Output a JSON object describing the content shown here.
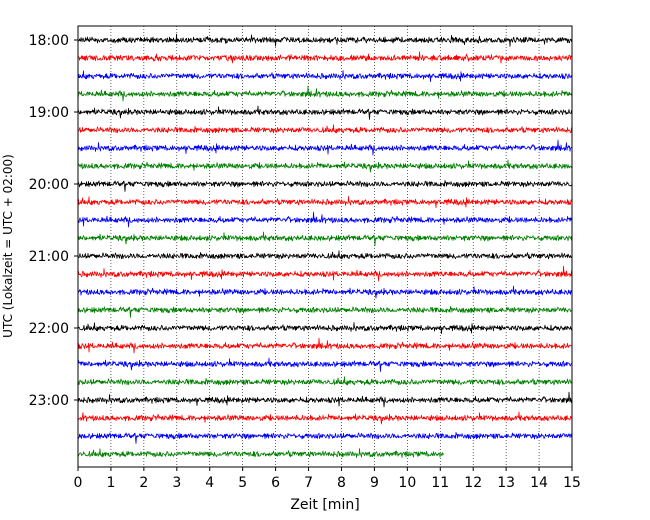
{
  "chart_data": {
    "type": "line",
    "title": "",
    "xlabel": "Zeit  [min]",
    "ylabel": "UTC (Lokalzeit = UTC + 02:00)",
    "xlim": [
      0,
      15
    ],
    "x_ticks": [
      0,
      1,
      2,
      3,
      4,
      5,
      6,
      7,
      8,
      9,
      10,
      11,
      12,
      13,
      14,
      15
    ],
    "y_tick_labels": [
      "18:00",
      "19:00",
      "20:00",
      "21:00",
      "22:00",
      "23:00"
    ],
    "grid": "vertical dotted lines at each minute",
    "legend": "none",
    "trace_colors": [
      "#000000",
      "#ff0000",
      "#0000ff",
      "#008000"
    ],
    "traces": [
      {
        "start": "18:00",
        "x_end": 15,
        "color": "#000000"
      },
      {
        "start": "18:15",
        "x_end": 15,
        "color": "#ff0000"
      },
      {
        "start": "18:30",
        "x_end": 15,
        "color": "#0000ff"
      },
      {
        "start": "18:45",
        "x_end": 15,
        "color": "#008000"
      },
      {
        "start": "19:00",
        "x_end": 15,
        "color": "#000000"
      },
      {
        "start": "19:15",
        "x_end": 15,
        "color": "#ff0000"
      },
      {
        "start": "19:30",
        "x_end": 15,
        "color": "#0000ff"
      },
      {
        "start": "19:45",
        "x_end": 15,
        "color": "#008000"
      },
      {
        "start": "20:00",
        "x_end": 15,
        "color": "#000000"
      },
      {
        "start": "20:15",
        "x_end": 15,
        "color": "#ff0000"
      },
      {
        "start": "20:30",
        "x_end": 15,
        "color": "#0000ff"
      },
      {
        "start": "20:45",
        "x_end": 15,
        "color": "#008000"
      },
      {
        "start": "21:00",
        "x_end": 15,
        "color": "#000000"
      },
      {
        "start": "21:15",
        "x_end": 15,
        "color": "#ff0000"
      },
      {
        "start": "21:30",
        "x_end": 15,
        "color": "#0000ff"
      },
      {
        "start": "21:45",
        "x_end": 15,
        "color": "#008000"
      },
      {
        "start": "22:00",
        "x_end": 15,
        "color": "#000000"
      },
      {
        "start": "22:15",
        "x_end": 15,
        "color": "#ff0000"
      },
      {
        "start": "22:30",
        "x_end": 15,
        "color": "#0000ff"
      },
      {
        "start": "22:45",
        "x_end": 15,
        "color": "#008000"
      },
      {
        "start": "23:00",
        "x_end": 15,
        "color": "#000000"
      },
      {
        "start": "23:15",
        "x_end": 15,
        "color": "#ff0000"
      },
      {
        "start": "23:30",
        "x_end": 15,
        "color": "#0000ff"
      },
      {
        "start": "23:45",
        "x_end": 11.1,
        "color": "#008000"
      }
    ]
  }
}
